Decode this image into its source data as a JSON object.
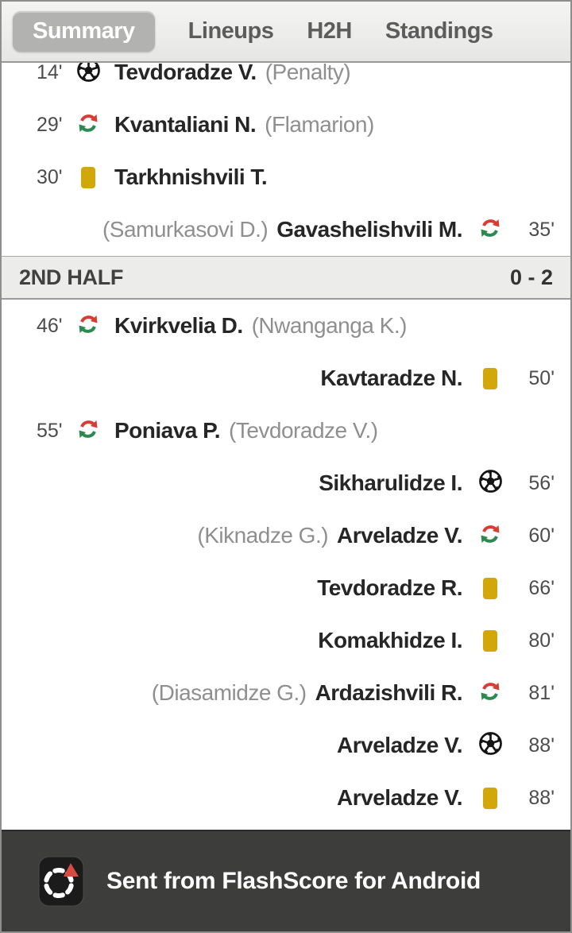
{
  "tabs": {
    "items": [
      {
        "label": "Summary",
        "active": true
      },
      {
        "label": "Lineups",
        "active": false
      },
      {
        "label": "H2H",
        "active": false
      },
      {
        "label": "Standings",
        "active": false
      }
    ]
  },
  "events": {
    "first_half": [
      {
        "minute": "14'",
        "icon": "goal",
        "side": "home",
        "player": "Tevdoradze V.",
        "note": "(Penalty)"
      },
      {
        "minute": "29'",
        "icon": "substitution",
        "side": "home",
        "player": "Kvantaliani N.",
        "note": "(Flamarion)"
      },
      {
        "minute": "30'",
        "icon": "yellow-card",
        "side": "home",
        "player": "Tarkhnishvili T.",
        "note": ""
      },
      {
        "minute": "35'",
        "icon": "substitution",
        "side": "away",
        "player": "Gavashelishvili M.",
        "note": "(Samurkasovi D.)"
      }
    ],
    "second_half": [
      {
        "minute": "46'",
        "icon": "substitution",
        "side": "home",
        "player": "Kvirkvelia D.",
        "note": "(Nwanganga K.)"
      },
      {
        "minute": "50'",
        "icon": "yellow-card",
        "side": "away",
        "player": "Kavtaradze N.",
        "note": ""
      },
      {
        "minute": "55'",
        "icon": "substitution",
        "side": "home",
        "player": "Poniava P.",
        "note": "(Tevdoradze V.)"
      },
      {
        "minute": "56'",
        "icon": "goal",
        "side": "away",
        "player": "Sikharulidze I.",
        "note": ""
      },
      {
        "minute": "60'",
        "icon": "substitution",
        "side": "away",
        "player": "Arveladze V.",
        "note": "(Kiknadze G.)"
      },
      {
        "minute": "66'",
        "icon": "yellow-card",
        "side": "away",
        "player": "Tevdoradze R.",
        "note": ""
      },
      {
        "minute": "80'",
        "icon": "yellow-card",
        "side": "away",
        "player": "Komakhidze I.",
        "note": ""
      },
      {
        "minute": "81'",
        "icon": "substitution",
        "side": "away",
        "player": "Ardazishvili R.",
        "note": "(Diasamidze G.)"
      },
      {
        "minute": "88'",
        "icon": "goal",
        "side": "away",
        "player": "Arveladze V.",
        "note": ""
      },
      {
        "minute": "88'",
        "icon": "yellow-card",
        "side": "away",
        "player": "Arveladze V.",
        "note": ""
      }
    ]
  },
  "sections": {
    "second_half": {
      "label": "2ND HALF",
      "score": "0 - 2"
    }
  },
  "footer": {
    "text": "Sent from FlashScore for Android",
    "icon": "flashscore-logo"
  },
  "colors": {
    "sub_out_red": "#d93c33",
    "sub_in_green": "#2c8a50",
    "yellow_card": "#d1a70a",
    "goal_black": "#141414",
    "footer_bg": "#3d3d3c",
    "brand_red": "#d94a42"
  }
}
